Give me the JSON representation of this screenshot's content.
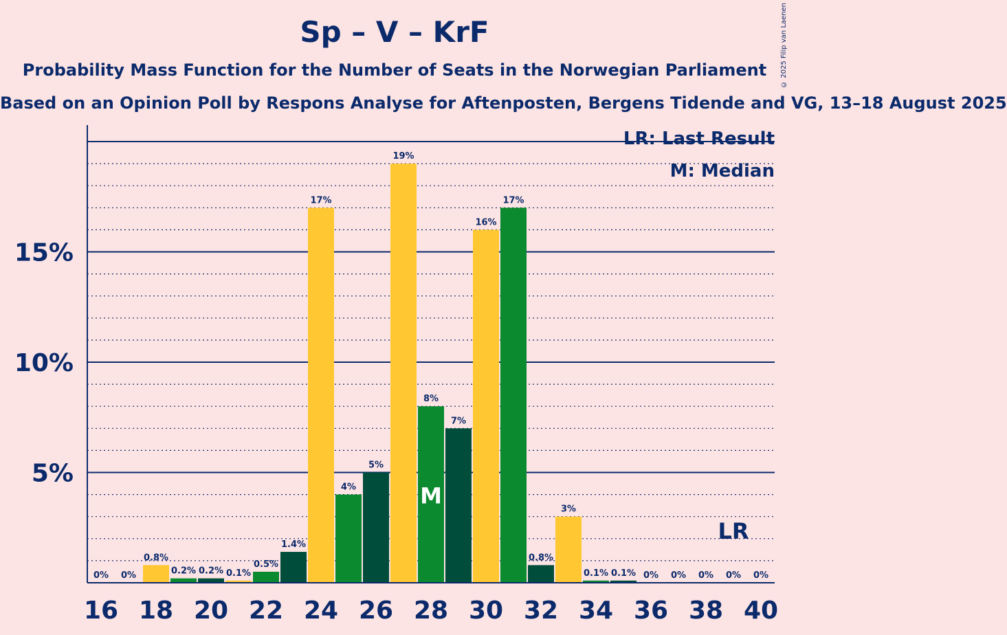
{
  "header": {
    "title": "Sp – V – KrF",
    "subtitle": "Probability Mass Function for the Number of Seats in the Norwegian Parliament",
    "subtitle2": "Based on an Opinion Poll by Respons Analyse for Aftenposten, Bergens Tidende and VG, 13–18 August 2025",
    "copyright": "© 2025 Filip van Laenen"
  },
  "legend": {
    "lr": "LR: Last Result",
    "median": "M: Median"
  },
  "colors": {
    "background": "#fde4e4",
    "axis": "#0b2a6b",
    "series": [
      "#0b8a2f",
      "#004d3c",
      "#ffc832"
    ]
  },
  "chart_data": {
    "type": "bar",
    "x": [
      16,
      17,
      18,
      19,
      20,
      21,
      22,
      23,
      24,
      25,
      26,
      27,
      28,
      29,
      30,
      31,
      32,
      33,
      34,
      35,
      36,
      37,
      38,
      39,
      40
    ],
    "values": [
      0,
      0,
      0.8,
      0.2,
      0.2,
      0.1,
      0.5,
      1.4,
      17,
      4,
      5,
      19,
      8,
      7,
      16,
      17,
      0.8,
      3,
      0.1,
      0.1,
      0,
      0,
      0,
      0,
      0
    ],
    "data_labels": [
      "0%",
      "0%",
      "0.8%",
      "0.2%",
      "0.2%",
      "0.1%",
      "0.5%",
      "1.4%",
      "17%",
      "4%",
      "5%",
      "19%",
      "8%",
      "7%",
      "16%",
      "17%",
      "0.8%",
      "3%",
      "0.1%",
      "0.1%",
      "0%",
      "0%",
      "0%",
      "0%",
      "0%"
    ],
    "x_tick_labels": [
      "16",
      "18",
      "20",
      "22",
      "24",
      "26",
      "28",
      "30",
      "32",
      "34",
      "36",
      "38",
      "40"
    ],
    "y_tick_labels": [
      "5%",
      "10%",
      "15%"
    ],
    "y_ticks": [
      5,
      10,
      15
    ],
    "ylim": [
      0,
      20.5
    ],
    "median": 28,
    "median_marker": "M",
    "last_result": 39,
    "last_result_marker": "LR",
    "grid": "dotted minor every 1%, solid major every 5%"
  }
}
